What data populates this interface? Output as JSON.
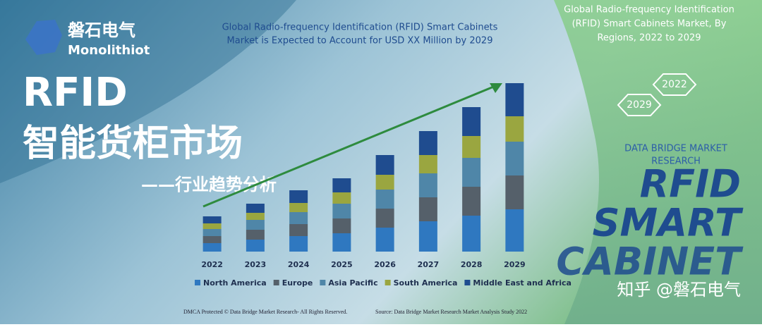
{
  "brand": {
    "name": "磐石电气",
    "sub": "Monolithiot"
  },
  "headline": {
    "line1": "RFID",
    "line2": "智能货柜市场",
    "line3": "——行业趋势分析"
  },
  "chart_data": {
    "type": "bar",
    "stacked": true,
    "title_lines": [
      "Global Radio-frequency Identification (RFID) Smart Cabinets",
      "Market is Expected to Account for USD XX Million by 2029"
    ],
    "categories": [
      "2022",
      "2023",
      "2024",
      "2025",
      "2026",
      "2027",
      "2028",
      "2029"
    ],
    "series": [
      {
        "name": "North America",
        "color": "#2f78c0",
        "values": [
          12,
          17,
          22,
          26,
          34,
          43,
          51,
          60
        ]
      },
      {
        "name": "Europe",
        "color": "#55606a",
        "values": [
          10,
          14,
          17,
          21,
          27,
          34,
          41,
          48
        ]
      },
      {
        "name": "Asia Pacific",
        "color": "#4f86a8",
        "values": [
          10,
          14,
          17,
          21,
          27,
          34,
          41,
          48
        ]
      },
      {
        "name": "South America",
        "color": "#9aa640",
        "values": [
          8,
          10,
          13,
          16,
          21,
          26,
          31,
          36
        ]
      },
      {
        "name": "Middle East and Africa",
        "color": "#1f4c8f",
        "values": [
          10,
          13,
          18,
          20,
          28,
          34,
          41,
          47
        ]
      }
    ]
  },
  "side": {
    "title_lines": [
      "Global Radio-frequency Identification",
      "(RFID) Smart Cabinets Market, By",
      "Regions, 2022 to 2029"
    ],
    "hex": [
      "2022",
      "2029"
    ],
    "publisher_lines": [
      "DATA BRIDGE MARKET",
      "RESEARCH"
    ],
    "big": [
      "RFID",
      "SMART",
      "CABINET"
    ]
  },
  "footer": {
    "left": "DMCA Protected © Data Bridge Market Research- All Rights Reserved.",
    "right": "Source: Data Bridge Market Research Market Analysis Study 2022"
  },
  "watermark": "知乎 @磐石电气"
}
